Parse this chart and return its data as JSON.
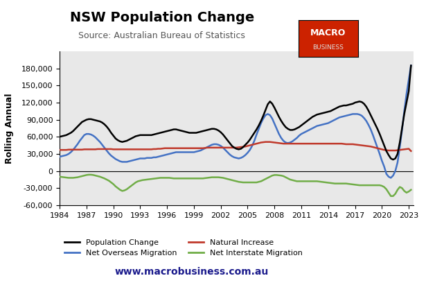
{
  "title": "NSW Population Change",
  "subtitle": "Source: Australian Bureau of Statistics",
  "ylabel": "Rolling Annual",
  "website": "www.macrobusiness.com.au",
  "background_color": "#e8e8e8",
  "ylim": [
    -60000,
    210000
  ],
  "yticks": [
    -60000,
    -30000,
    0,
    30000,
    60000,
    90000,
    120000,
    150000,
    180000
  ],
  "xticks": [
    1984,
    1987,
    1990,
    1993,
    1996,
    1999,
    2002,
    2005,
    2008,
    2011,
    2014,
    2017,
    2020,
    2023
  ],
  "colors": {
    "population_change": "#000000",
    "net_overseas_migration": "#4472c4",
    "natural_increase": "#c0392b",
    "net_interstate_migration": "#70ad47"
  },
  "legend": [
    {
      "label": "Population Change",
      "color": "#000000"
    },
    {
      "label": "Net Overseas Migration",
      "color": "#4472c4"
    },
    {
      "label": "Natural Increase",
      "color": "#c0392b"
    },
    {
      "label": "Net Interstate Migration",
      "color": "#70ad47"
    }
  ],
  "years": [
    1984,
    1984.25,
    1984.5,
    1984.75,
    1985,
    1985.25,
    1985.5,
    1985.75,
    1986,
    1986.25,
    1986.5,
    1986.75,
    1987,
    1987.25,
    1987.5,
    1987.75,
    1988,
    1988.25,
    1988.5,
    1988.75,
    1989,
    1989.25,
    1989.5,
    1989.75,
    1990,
    1990.25,
    1990.5,
    1990.75,
    1991,
    1991.25,
    1991.5,
    1991.75,
    1992,
    1992.25,
    1992.5,
    1992.75,
    1993,
    1993.25,
    1993.5,
    1993.75,
    1994,
    1994.25,
    1994.5,
    1994.75,
    1995,
    1995.25,
    1995.5,
    1995.75,
    1996,
    1996.25,
    1996.5,
    1996.75,
    1997,
    1997.25,
    1997.5,
    1997.75,
    1998,
    1998.25,
    1998.5,
    1998.75,
    1999,
    1999.25,
    1999.5,
    1999.75,
    2000,
    2000.25,
    2000.5,
    2000.75,
    2001,
    2001.25,
    2001.5,
    2001.75,
    2002,
    2002.25,
    2002.5,
    2002.75,
    2003,
    2003.25,
    2003.5,
    2003.75,
    2004,
    2004.25,
    2004.5,
    2004.75,
    2005,
    2005.25,
    2005.5,
    2005.75,
    2006,
    2006.25,
    2006.5,
    2006.75,
    2007,
    2007.25,
    2007.5,
    2007.75,
    2008,
    2008.25,
    2008.5,
    2008.75,
    2009,
    2009.25,
    2009.5,
    2009.75,
    2010,
    2010.25,
    2010.5,
    2010.75,
    2011,
    2011.25,
    2011.5,
    2011.75,
    2012,
    2012.25,
    2012.5,
    2012.75,
    2013,
    2013.25,
    2013.5,
    2013.75,
    2014,
    2014.25,
    2014.5,
    2014.75,
    2015,
    2015.25,
    2015.5,
    2015.75,
    2016,
    2016.25,
    2016.5,
    2016.75,
    2017,
    2017.25,
    2017.5,
    2017.75,
    2018,
    2018.25,
    2018.5,
    2018.75,
    2019,
    2019.25,
    2019.5,
    2019.75,
    2020,
    2020.25,
    2020.5,
    2020.75,
    2021,
    2021.25,
    2021.5,
    2021.75,
    2022,
    2022.25,
    2022.5,
    2022.75,
    2023,
    2023.25
  ],
  "population_change": [
    60000,
    61000,
    62000,
    63000,
    65000,
    67000,
    70000,
    74000,
    78000,
    82000,
    86000,
    88000,
    90000,
    91000,
    91000,
    90000,
    89000,
    88000,
    87000,
    85000,
    82000,
    78000,
    73000,
    67000,
    62000,
    57000,
    54000,
    52000,
    51000,
    52000,
    53000,
    55000,
    57000,
    59000,
    61000,
    62000,
    63000,
    63000,
    63000,
    63000,
    63000,
    63000,
    64000,
    65000,
    66000,
    67000,
    68000,
    69000,
    70000,
    71000,
    72000,
    73000,
    73000,
    72000,
    71000,
    70000,
    69000,
    68000,
    67000,
    67000,
    67000,
    67000,
    68000,
    69000,
    70000,
    71000,
    72000,
    73000,
    74000,
    74000,
    73000,
    71000,
    68000,
    64000,
    59000,
    54000,
    49000,
    44000,
    41000,
    39000,
    38000,
    39000,
    42000,
    46000,
    50000,
    55000,
    61000,
    67000,
    73000,
    80000,
    88000,
    97000,
    107000,
    117000,
    122000,
    118000,
    111000,
    103000,
    95000,
    88000,
    82000,
    77000,
    74000,
    72000,
    72000,
    73000,
    75000,
    77000,
    80000,
    83000,
    86000,
    89000,
    92000,
    95000,
    97000,
    99000,
    100000,
    101000,
    102000,
    103000,
    104000,
    105000,
    107000,
    109000,
    111000,
    113000,
    114000,
    115000,
    115000,
    116000,
    117000,
    118000,
    120000,
    121000,
    122000,
    121000,
    118000,
    113000,
    106000,
    98000,
    90000,
    82000,
    74000,
    65000,
    55000,
    45000,
    35000,
    28000,
    22000,
    20000,
    22000,
    30000,
    50000,
    75000,
    100000,
    120000,
    140000,
    185000
  ],
  "net_overseas_migration": [
    25000,
    26000,
    27000,
    28000,
    30000,
    33000,
    37000,
    42000,
    47000,
    53000,
    58000,
    63000,
    65000,
    65000,
    64000,
    62000,
    59000,
    55000,
    51000,
    46000,
    41000,
    36000,
    31000,
    27000,
    24000,
    21000,
    19000,
    17000,
    16000,
    16000,
    16000,
    17000,
    18000,
    19000,
    20000,
    21000,
    22000,
    22000,
    22000,
    23000,
    23000,
    23000,
    24000,
    24000,
    25000,
    26000,
    27000,
    28000,
    29000,
    30000,
    31000,
    32000,
    33000,
    33000,
    33000,
    33000,
    33000,
    33000,
    33000,
    33000,
    33000,
    34000,
    35000,
    36000,
    38000,
    40000,
    42000,
    44000,
    46000,
    47000,
    47000,
    46000,
    44000,
    41000,
    37000,
    33000,
    29000,
    26000,
    24000,
    23000,
    22000,
    23000,
    25000,
    28000,
    32000,
    37000,
    44000,
    53000,
    64000,
    74000,
    84000,
    92000,
    98000,
    100000,
    98000,
    92000,
    83000,
    74000,
    65000,
    58000,
    53000,
    50000,
    49000,
    50000,
    52000,
    55000,
    58000,
    62000,
    65000,
    67000,
    69000,
    71000,
    73000,
    75000,
    77000,
    79000,
    80000,
    81000,
    82000,
    83000,
    84000,
    86000,
    88000,
    90000,
    92000,
    94000,
    95000,
    96000,
    97000,
    98000,
    99000,
    100000,
    100000,
    100000,
    99000,
    97000,
    93000,
    88000,
    81000,
    73000,
    63000,
    52000,
    41000,
    30000,
    18000,
    8000,
    -5000,
    -10000,
    -12000,
    -8000,
    0,
    15000,
    42000,
    72000,
    105000,
    135000,
    160000,
    185000
  ],
  "natural_increase": [
    37000,
    37000,
    37000,
    37000,
    37500,
    37500,
    37500,
    37500,
    37500,
    37500,
    37500,
    38000,
    38000,
    38000,
    38000,
    38000,
    38000,
    38500,
    38500,
    38500,
    38500,
    38500,
    38500,
    38500,
    38000,
    38000,
    38000,
    38000,
    38000,
    38000,
    38000,
    38000,
    38000,
    38000,
    38000,
    38000,
    38000,
    38000,
    38000,
    38000,
    38000,
    38000,
    38500,
    38500,
    39000,
    39000,
    39500,
    40000,
    40000,
    40000,
    40000,
    40000,
    40000,
    40000,
    40000,
    40000,
    40000,
    40000,
    40000,
    40000,
    40000,
    40000,
    40000,
    40000,
    40000,
    40500,
    41000,
    41000,
    41000,
    41000,
    41000,
    41000,
    41000,
    41000,
    41000,
    41000,
    41000,
    41000,
    41000,
    41000,
    41500,
    42000,
    42500,
    43000,
    44000,
    45000,
    46000,
    47000,
    48000,
    49000,
    50000,
    50500,
    51000,
    51000,
    51000,
    50500,
    50000,
    49500,
    49000,
    48500,
    48000,
    48000,
    48000,
    48000,
    48000,
    48000,
    48000,
    48000,
    48000,
    48000,
    48000,
    48000,
    48000,
    48000,
    48000,
    48000,
    48000,
    48000,
    48000,
    48000,
    48000,
    48000,
    48000,
    48000,
    48000,
    48000,
    48000,
    47500,
    47000,
    47000,
    47000,
    47000,
    46500,
    46000,
    45500,
    45000,
    44500,
    44000,
    43500,
    43000,
    42000,
    41000,
    40000,
    39000,
    38000,
    37000,
    36500,
    36000,
    36000,
    36000,
    36000,
    36500,
    37000,
    37500,
    38000,
    38500,
    39000,
    35000
  ],
  "net_interstate_migration": [
    -10000,
    -10500,
    -11000,
    -11500,
    -12000,
    -12000,
    -12000,
    -11500,
    -11000,
    -10000,
    -9000,
    -8000,
    -7000,
    -6500,
    -6500,
    -7000,
    -8000,
    -9000,
    -10000,
    -11500,
    -13000,
    -15000,
    -17000,
    -20000,
    -23000,
    -27000,
    -30000,
    -33000,
    -35000,
    -34000,
    -32000,
    -29000,
    -26000,
    -23000,
    -20000,
    -18000,
    -17000,
    -16000,
    -15500,
    -15000,
    -14500,
    -14000,
    -13500,
    -13000,
    -12500,
    -12000,
    -12000,
    -12000,
    -12000,
    -12000,
    -12500,
    -13000,
    -13000,
    -13000,
    -13000,
    -13000,
    -13000,
    -13000,
    -13000,
    -13000,
    -13000,
    -13000,
    -13000,
    -13000,
    -13000,
    -12500,
    -12000,
    -11500,
    -11000,
    -11000,
    -11000,
    -11000,
    -11500,
    -12000,
    -13000,
    -14000,
    -15000,
    -16000,
    -17000,
    -18000,
    -19000,
    -19500,
    -20000,
    -20000,
    -20000,
    -20000,
    -20000,
    -20000,
    -20000,
    -19000,
    -18000,
    -16000,
    -14000,
    -12000,
    -10000,
    -8000,
    -7000,
    -7000,
    -7500,
    -8000,
    -9000,
    -11000,
    -13000,
    -15000,
    -16000,
    -17000,
    -18000,
    -18000,
    -18000,
    -18000,
    -18000,
    -18000,
    -18000,
    -18000,
    -18000,
    -18000,
    -18500,
    -19000,
    -19500,
    -20000,
    -20500,
    -21000,
    -21500,
    -22000,
    -22000,
    -22000,
    -22000,
    -22000,
    -22000,
    -22500,
    -23000,
    -23500,
    -24000,
    -24500,
    -25000,
    -25000,
    -25000,
    -25000,
    -25000,
    -25000,
    -25000,
    -25000,
    -25000,
    -25000,
    -26000,
    -28000,
    -32000,
    -38000,
    -44000,
    -44000,
    -40000,
    -33000,
    -28000,
    -30000,
    -35000,
    -38000,
    -36000,
    -33000
  ]
}
